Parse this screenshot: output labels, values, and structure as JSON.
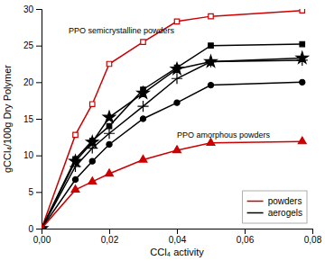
{
  "chart_data": {
    "type": "line",
    "xlabel": "CCl₄ activity",
    "ylabel": "gCCl₄/100g Dry Polymer",
    "x": [
      0.0,
      0.01,
      0.015,
      0.02,
      0.03,
      0.04,
      0.05,
      0.077
    ],
    "xlim": [
      0,
      0.08
    ],
    "ylim": [
      0,
      30
    ],
    "xticks": [
      {
        "value": 0.0,
        "label": "0,00"
      },
      {
        "value": 0.02,
        "label": "0,02"
      },
      {
        "value": 0.04,
        "label": "0,04"
      },
      {
        "value": 0.06,
        "label": "0,06"
      },
      {
        "value": 0.08,
        "label": "0,08"
      }
    ],
    "yticks": [
      0,
      5,
      10,
      15,
      20,
      25,
      30
    ],
    "legend": "bottom-right",
    "series": [
      {
        "name": "powders",
        "color": "#cc0000",
        "marker": "square-open",
        "values": [
          0.0,
          12.8,
          17.0,
          22.5,
          25.5,
          28.3,
          29.0,
          29.8
        ]
      },
      {
        "name": "aerogels",
        "color": "#000000",
        "marker": "square",
        "values": [
          0.0,
          9.5,
          12.0,
          14.0,
          19.0,
          22.0,
          25.0,
          25.2
        ]
      },
      {
        "color": "#000000",
        "marker": "star",
        "values": [
          0.0,
          9.2,
          11.8,
          15.2,
          18.5,
          21.8,
          22.8,
          23.3
        ]
      },
      {
        "color": "#000000",
        "marker": "plus",
        "values": [
          0.0,
          8.5,
          11.0,
          13.0,
          16.7,
          20.5,
          22.8,
          23.0
        ]
      },
      {
        "color": "#000000",
        "marker": "circle",
        "values": [
          0.0,
          6.7,
          9.2,
          11.5,
          15.0,
          17.2,
          19.6,
          20.0
        ]
      },
      {
        "color": "#cc0000",
        "marker": "triangle",
        "values": [
          0.0,
          5.3,
          6.4,
          7.5,
          9.4,
          10.7,
          11.7,
          11.9
        ]
      }
    ],
    "annotations": [
      {
        "text": "PPO semicrystalline powders",
        "x": 0.008,
        "y": 26.5
      },
      {
        "text": "PPO amorphous powders",
        "x": 0.04,
        "y": 12.3
      }
    ]
  }
}
